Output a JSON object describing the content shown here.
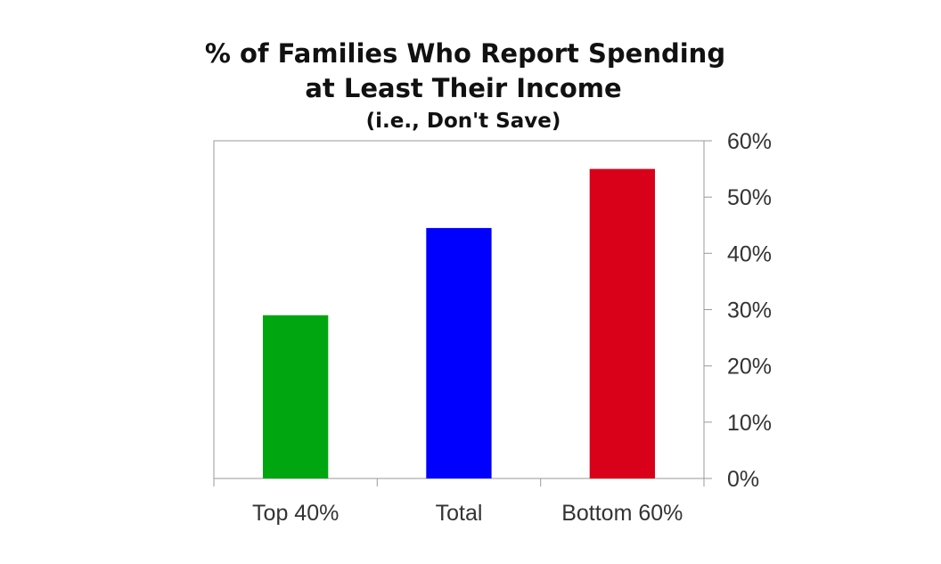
{
  "chart_data": {
    "type": "bar",
    "title": "% of Families Who Report Spending",
    "title_line2": "at Least Their Income",
    "subtitle": "(i.e., Don't Save)",
    "categories": [
      "Top 40%",
      "Total",
      "Bottom 60%"
    ],
    "values": [
      29,
      44.5,
      55
    ],
    "bar_colors": [
      "#00a60f",
      "#0000ff",
      "#d9001a"
    ],
    "xlabel": "",
    "ylabel": "",
    "ylim": [
      0,
      60
    ],
    "yticks": [
      0,
      10,
      20,
      30,
      40,
      50,
      60
    ],
    "ytick_labels": [
      "0%",
      "10%",
      "20%",
      "30%",
      "40%",
      "50%",
      "60%"
    ],
    "y_axis_side": "right",
    "grid": false
  }
}
